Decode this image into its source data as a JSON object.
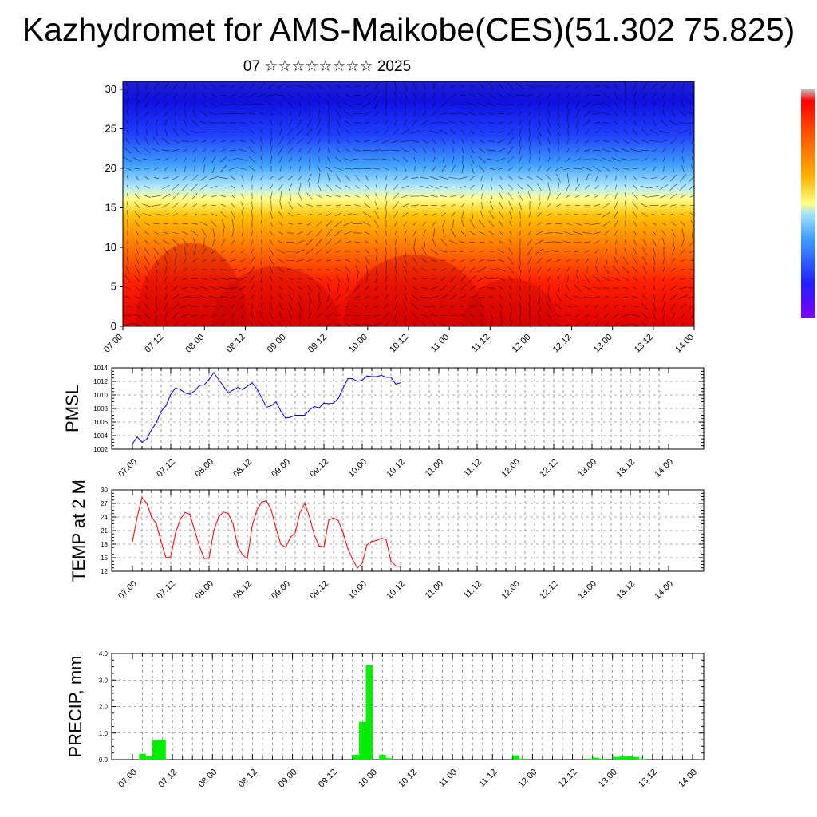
{
  "title": "Kazhydromet for AMS-Maikobe(CES)(51.302 75.825)",
  "subtitle": "07 ☆☆☆☆☆☆☆☆ 2025",
  "chart_data": [
    {
      "type": "heatmap",
      "description_of_marks": "filled contour of a field over time vs level, with overlaid wind-vector arrows",
      "x_tick_labels": [
        "07.00",
        "07.12",
        "08.00",
        "08.12",
        "09.00",
        "09.12",
        "10.00",
        "10.12",
        "11.00",
        "11.12",
        "12.00",
        "12.12",
        "13.00",
        "13.12",
        "14.00"
      ],
      "y_ticks": [
        0,
        5,
        10,
        15,
        20,
        25,
        30
      ],
      "ylim": [
        0,
        31
      ],
      "colorbar_colors": [
        "#c0c0c0",
        "#ff0000",
        "#ff6000",
        "#ffb000",
        "#ffff80",
        "#a0e0ff",
        "#40a0ff",
        "#2020ff",
        "#8000ff"
      ]
    },
    {
      "type": "line",
      "ylabel": "PMSL",
      "color": "#0000ff",
      "x_tick_labels": [
        "07.00",
        "07.12",
        "08.00",
        "08.12",
        "09.00",
        "09.12",
        "10.00",
        "10.12",
        "11.00",
        "11.12",
        "12.00",
        "12.12",
        "13.00",
        "13.12",
        "14.00"
      ],
      "y_ticks": [
        1002,
        1004,
        1006,
        1008,
        1010,
        1012,
        1014
      ],
      "ylim": [
        1002,
        1014
      ],
      "values": [
        1002.8,
        1003.8,
        1003.0,
        1003.5,
        1004.9,
        1005.9,
        1007.6,
        1008.4,
        1010.1,
        1011.0,
        1010.8,
        1010.3,
        1010.1,
        1010.6,
        1011.4,
        1011.5,
        1012.3,
        1013.3,
        1012.3,
        1011.3,
        1010.3,
        1010.7,
        1011.1,
        1010.8,
        1011.3,
        1011.8,
        1010.9,
        1009.6,
        1008.2,
        1008.4,
        1009.0,
        1007.6,
        1006.6,
        1006.7,
        1007.0,
        1007.0,
        1007.0,
        1007.8,
        1008.3,
        1008.1,
        1008.8,
        1008.7,
        1008.8,
        1009.5,
        1011.0,
        1012.4,
        1012.4,
        1012.0,
        1012.2,
        1012.8,
        1012.7,
        1012.7,
        1012.9,
        1012.6,
        1012.6,
        1011.6,
        1011.8
      ]
    },
    {
      "type": "line",
      "ylabel": "TEMP at 2 M",
      "color": "#ff0000",
      "x_tick_labels": [
        "07.00",
        "07.12",
        "08.00",
        "08.12",
        "09.00",
        "09.12",
        "10.00",
        "10.12",
        "11.00",
        "11.12",
        "12.00",
        "12.12",
        "13.00",
        "13.12",
        "14.00"
      ],
      "y_ticks": [
        12,
        15,
        18,
        21,
        24,
        27,
        30
      ],
      "ylim": [
        12,
        30
      ],
      "values": [
        18.6,
        24.0,
        28.3,
        27.0,
        24.0,
        22.5,
        18.5,
        15.0,
        15.2,
        20.5,
        23.5,
        25.0,
        24.6,
        21.0,
        17.5,
        14.8,
        14.9,
        21.0,
        24.0,
        25.1,
        24.8,
        22.5,
        17.5,
        15.6,
        14.8,
        22.0,
        25.5,
        27.3,
        27.6,
        25.5,
        21.5,
        18.0,
        17.3,
        19.5,
        20.5,
        25.0,
        27.0,
        24.0,
        20.0,
        17.6,
        17.4,
        23.3,
        23.8,
        23.2,
        20.5,
        17.0,
        14.6,
        12.7,
        13.8,
        17.9,
        18.6,
        18.8,
        19.3,
        19.0,
        14.2,
        13.2,
        13.0
      ]
    },
    {
      "type": "bar",
      "ylabel": "PRECIP, mm",
      "color": "#00ee00",
      "x_tick_labels": [
        "07.00",
        "07.12",
        "08.00",
        "08.12",
        "09.00",
        "09.12",
        "10.00",
        "10.12",
        "11.00",
        "11.12",
        "12.00",
        "12.12",
        "13.00",
        "13.12",
        "14.00"
      ],
      "y_tick_labels": [
        "0.0",
        "1.0",
        "2.0",
        "3.0",
        "4.0"
      ],
      "ylim": [
        0,
        4
      ],
      "values": [
        0.0,
        0.22,
        0.12,
        0.72,
        0.75,
        0.0,
        0.0,
        0.0,
        0.0,
        0.0,
        0.0,
        0.0,
        0.0,
        0.0,
        0.0,
        0.0,
        0.0,
        0.0,
        0.0,
        0.0,
        0.0,
        0.0,
        0.0,
        0.0,
        0.0,
        0.0,
        0.0,
        0.0,
        0.0,
        0.0,
        0.0,
        0.0,
        0.0,
        0.18,
        1.42,
        3.55,
        0.0,
        0.18,
        0.05,
        0.0,
        0.0,
        0.0,
        0.0,
        0.0,
        0.0,
        0.0,
        0.0,
        0.0,
        0.0,
        0.0,
        0.0,
        0.0,
        0.0,
        0.0,
        0.0,
        0.0,
        0.0,
        0.16,
        0.03,
        0.0,
        0.0,
        0.0,
        0.0,
        0.0,
        0.0,
        0.0,
        0.0,
        0.0,
        0.03,
        0.07,
        0.03,
        0.0,
        0.1,
        0.11,
        0.12,
        0.1,
        0.02,
        0.0
      ]
    }
  ]
}
